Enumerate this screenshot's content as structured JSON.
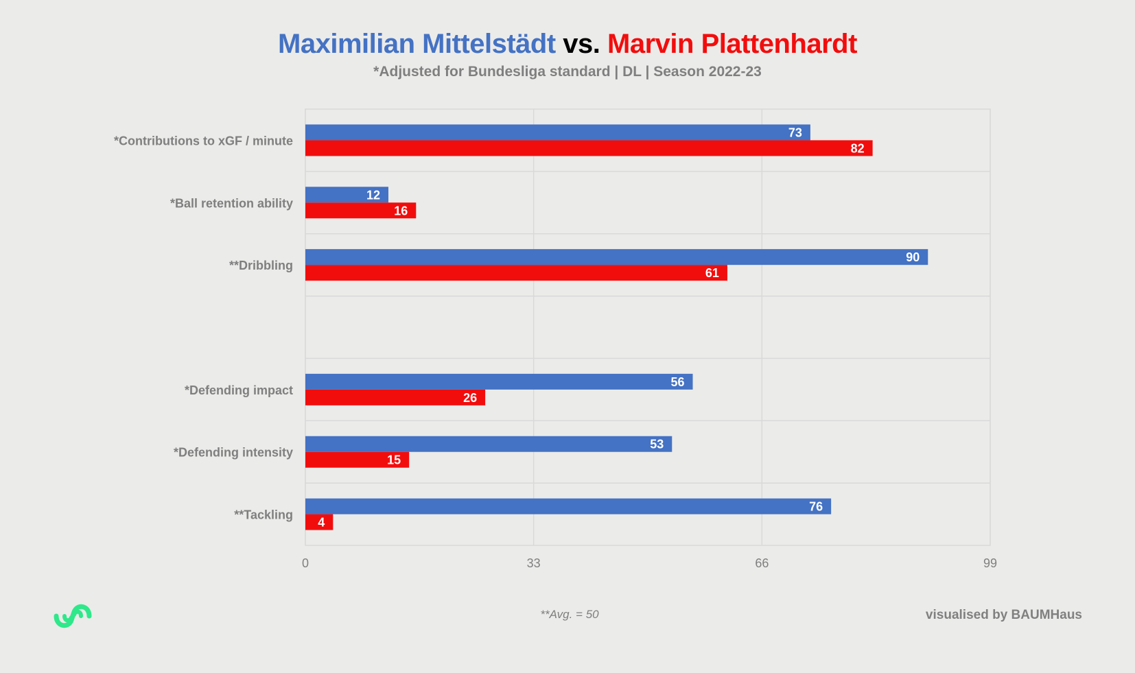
{
  "header": {
    "player_a": "Maximilian Mittelstädt",
    "versus": "vs.",
    "player_b": "Marvin Plattenhardt",
    "subtitle": "*Adjusted for Bundesliga standard | DL | Season 2022-23"
  },
  "colors": {
    "player_a": "#4472c4",
    "player_b": "#f20d0d",
    "versus": "#000000",
    "logo": "#2ee88a"
  },
  "footer": {
    "note": "**Avg. = 50",
    "credit": "visualised by BAUMHaus",
    "logo_icon": "baumhaus-logo-icon"
  },
  "chart_data": {
    "type": "bar",
    "orientation": "horizontal",
    "categories": [
      "*Contributions to xGF / minute",
      "*Ball retention ability",
      "**Dribbling",
      "",
      "*Defending impact",
      "*Defending intensity",
      "**Tackling"
    ],
    "series": [
      {
        "name": "Maximilian Mittelstädt",
        "color": "#4472c4",
        "values": [
          73,
          12,
          90,
          null,
          56,
          53,
          76
        ]
      },
      {
        "name": "Marvin Plattenhardt",
        "color": "#f20d0d",
        "values": [
          82,
          16,
          61,
          null,
          26,
          15,
          4
        ]
      }
    ],
    "xlim": [
      0,
      99
    ],
    "xticks": [
      0,
      33,
      66,
      99
    ],
    "grid": true,
    "data_labels": true
  }
}
